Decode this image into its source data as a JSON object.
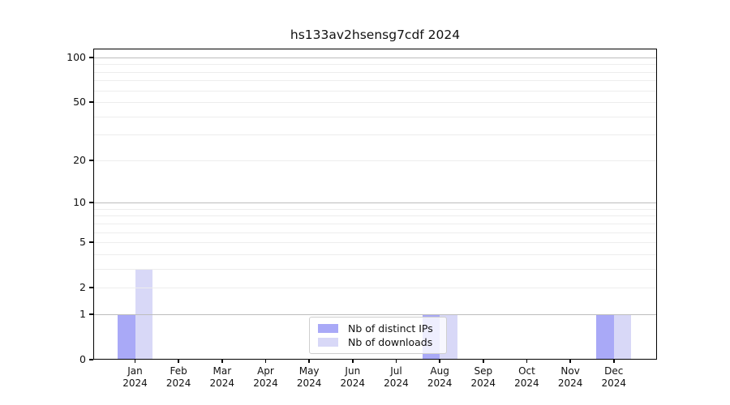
{
  "title": "hs133av2hsensg7cdf 2024",
  "chart_data": {
    "type": "bar",
    "title": "hs133av2hsensg7cdf 2024",
    "categories": [
      "Jan",
      "Feb",
      "Mar",
      "Apr",
      "May",
      "Jun",
      "Jul",
      "Aug",
      "Sep",
      "Oct",
      "Nov",
      "Dec"
    ],
    "year": "2024",
    "series": [
      {
        "name": "Nb of distinct IPs",
        "color": "#a9a9f7",
        "values": [
          1,
          0,
          0,
          0,
          0,
          0,
          0,
          1,
          0,
          0,
          0,
          1
        ]
      },
      {
        "name": "Nb of downloads",
        "color": "#d8d8f7",
        "values": [
          3,
          0,
          0,
          0,
          0,
          0,
          0,
          1,
          0,
          0,
          0,
          1
        ]
      }
    ],
    "y_axis": {
      "scale": "log1p",
      "ticks": [
        0,
        1,
        2,
        5,
        10,
        20,
        50,
        100
      ],
      "major_gridlines": [
        1,
        10,
        100
      ],
      "minor_gridlines": [
        2,
        3,
        4,
        5,
        6,
        7,
        8,
        9,
        20,
        30,
        40,
        50,
        60,
        70,
        80,
        90
      ],
      "ylim": [
        0,
        100
      ]
    },
    "x_axis": {
      "label_format": "month-over-year"
    },
    "legend": {
      "position": "bottom-center"
    },
    "grid": true
  },
  "colors": {
    "distinct_ips_bar": "#a9a9f7",
    "downloads_bar": "#d8d8f7",
    "major_grid": "#bdbdbd",
    "minor_grid": "#ededed",
    "axis": "#000000",
    "background": "#ffffff"
  }
}
